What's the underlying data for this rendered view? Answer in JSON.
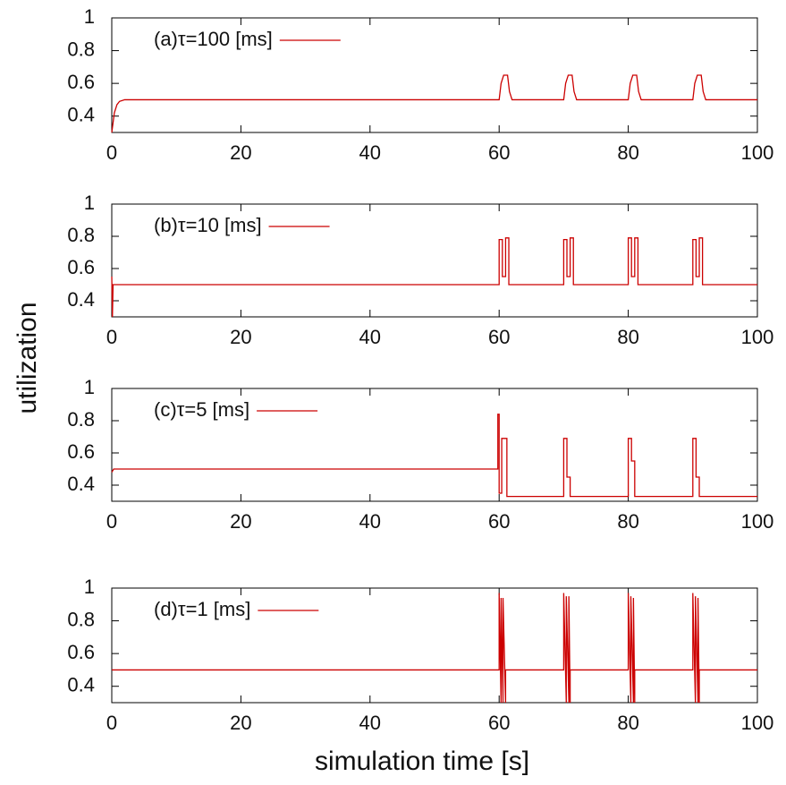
{
  "xlabel": "simulation time [s]",
  "ylabel": "utilization",
  "chart_data": [
    {
      "type": "line",
      "xlim": [
        0,
        100
      ],
      "xticks": [
        0,
        20,
        40,
        60,
        80,
        100
      ],
      "ylim": [
        0.3,
        1
      ],
      "yticks": [
        0.4,
        0.6,
        0.8,
        1
      ],
      "x": [
        0,
        0.4,
        0.8,
        1.2,
        2,
        60,
        60.3,
        60.7,
        61.3,
        61.6,
        62,
        70,
        70.3,
        70.7,
        71.3,
        71.6,
        72,
        80,
        80.3,
        80.7,
        81.3,
        81.6,
        82,
        90,
        90.3,
        90.7,
        91.3,
        91.6,
        92,
        100
      ],
      "series": [
        {
          "name": "(a)τ=100 [ms]",
          "color": "#cc0000",
          "values": [
            0.3,
            0.42,
            0.47,
            0.49,
            0.5,
            0.5,
            0.6,
            0.65,
            0.65,
            0.55,
            0.5,
            0.5,
            0.6,
            0.65,
            0.65,
            0.55,
            0.5,
            0.5,
            0.6,
            0.65,
            0.65,
            0.55,
            0.5,
            0.5,
            0.6,
            0.65,
            0.65,
            0.55,
            0.5,
            0.5
          ]
        }
      ]
    },
    {
      "type": "line",
      "xlim": [
        0,
        100
      ],
      "xticks": [
        0,
        20,
        40,
        60,
        80,
        100
      ],
      "ylim": [
        0.3,
        1
      ],
      "yticks": [
        0.4,
        0.6,
        0.8,
        1
      ],
      "x": [
        0,
        0.1,
        0.2,
        60,
        60,
        60.5,
        60.5,
        61,
        61,
        61.5,
        61.5,
        70,
        70,
        70.5,
        70.5,
        71,
        71,
        71.5,
        71.5,
        80,
        80,
        80.5,
        80.5,
        81,
        81,
        81.5,
        81.5,
        90,
        90,
        90.5,
        90.5,
        91,
        91,
        91.5,
        91.5,
        100
      ],
      "series": [
        {
          "name": "(b)τ=10 [ms]",
          "color": "#cc0000",
          "values": [
            0.55,
            0.3,
            0.5,
            0.5,
            0.78,
            0.78,
            0.55,
            0.55,
            0.79,
            0.79,
            0.5,
            0.5,
            0.78,
            0.78,
            0.55,
            0.55,
            0.79,
            0.79,
            0.5,
            0.5,
            0.79,
            0.79,
            0.55,
            0.55,
            0.79,
            0.79,
            0.5,
            0.5,
            0.78,
            0.78,
            0.55,
            0.55,
            0.79,
            0.79,
            0.5,
            0.5
          ]
        }
      ]
    },
    {
      "type": "line",
      "xlim": [
        0,
        100
      ],
      "xticks": [
        0,
        20,
        40,
        60,
        80,
        100
      ],
      "ylim": [
        0.3,
        1
      ],
      "yticks": [
        0.4,
        0.6,
        0.8,
        1
      ],
      "x": [
        0,
        0.3,
        59.8,
        59.8,
        60,
        60,
        60.4,
        60.4,
        60.9,
        60.9,
        61.2,
        61.2,
        70,
        70,
        70.5,
        70.5,
        71,
        71,
        80,
        80,
        80.5,
        80.5,
        81,
        81,
        90,
        90,
        90.5,
        90.5,
        91,
        91,
        100
      ],
      "series": [
        {
          "name": "(c)τ=5 [ms]",
          "color": "#cc0000",
          "values": [
            0.48,
            0.5,
            0.5,
            0.84,
            0.84,
            0.35,
            0.35,
            0.69,
            0.69,
            0.69,
            0.69,
            0.33,
            0.33,
            0.69,
            0.69,
            0.45,
            0.45,
            0.33,
            0.33,
            0.69,
            0.69,
            0.55,
            0.55,
            0.33,
            0.33,
            0.69,
            0.69,
            0.45,
            0.45,
            0.33,
            0.33
          ]
        }
      ]
    },
    {
      "type": "line",
      "xlim": [
        0,
        100
      ],
      "xticks": [
        0,
        20,
        40,
        60,
        80,
        100
      ],
      "ylim": [
        0.3,
        1
      ],
      "yticks": [
        0.4,
        0.6,
        0.8,
        1
      ],
      "x": [
        0,
        60,
        60,
        60.3,
        60.3,
        60.6,
        60.6,
        61,
        61,
        70,
        70,
        70.4,
        70.4,
        70.8,
        70.8,
        71,
        71,
        80,
        80,
        80.4,
        80.4,
        80.8,
        80.8,
        81,
        81,
        90,
        90,
        90.4,
        90.4,
        90.8,
        90.8,
        91,
        91,
        100
      ],
      "series": [
        {
          "name": "(d)τ=1 [ms]",
          "color": "#cc0000",
          "values": [
            0.5,
            0.5,
            0.97,
            0.3,
            0.94,
            0.3,
            0.94,
            0.3,
            0.5,
            0.5,
            0.97,
            0.3,
            0.95,
            0.3,
            0.95,
            0.3,
            0.5,
            0.5,
            0.97,
            0.3,
            0.95,
            0.3,
            0.94,
            0.3,
            0.5,
            0.5,
            0.97,
            0.3,
            0.95,
            0.3,
            0.94,
            0.3,
            0.5,
            0.5
          ]
        }
      ]
    }
  ]
}
